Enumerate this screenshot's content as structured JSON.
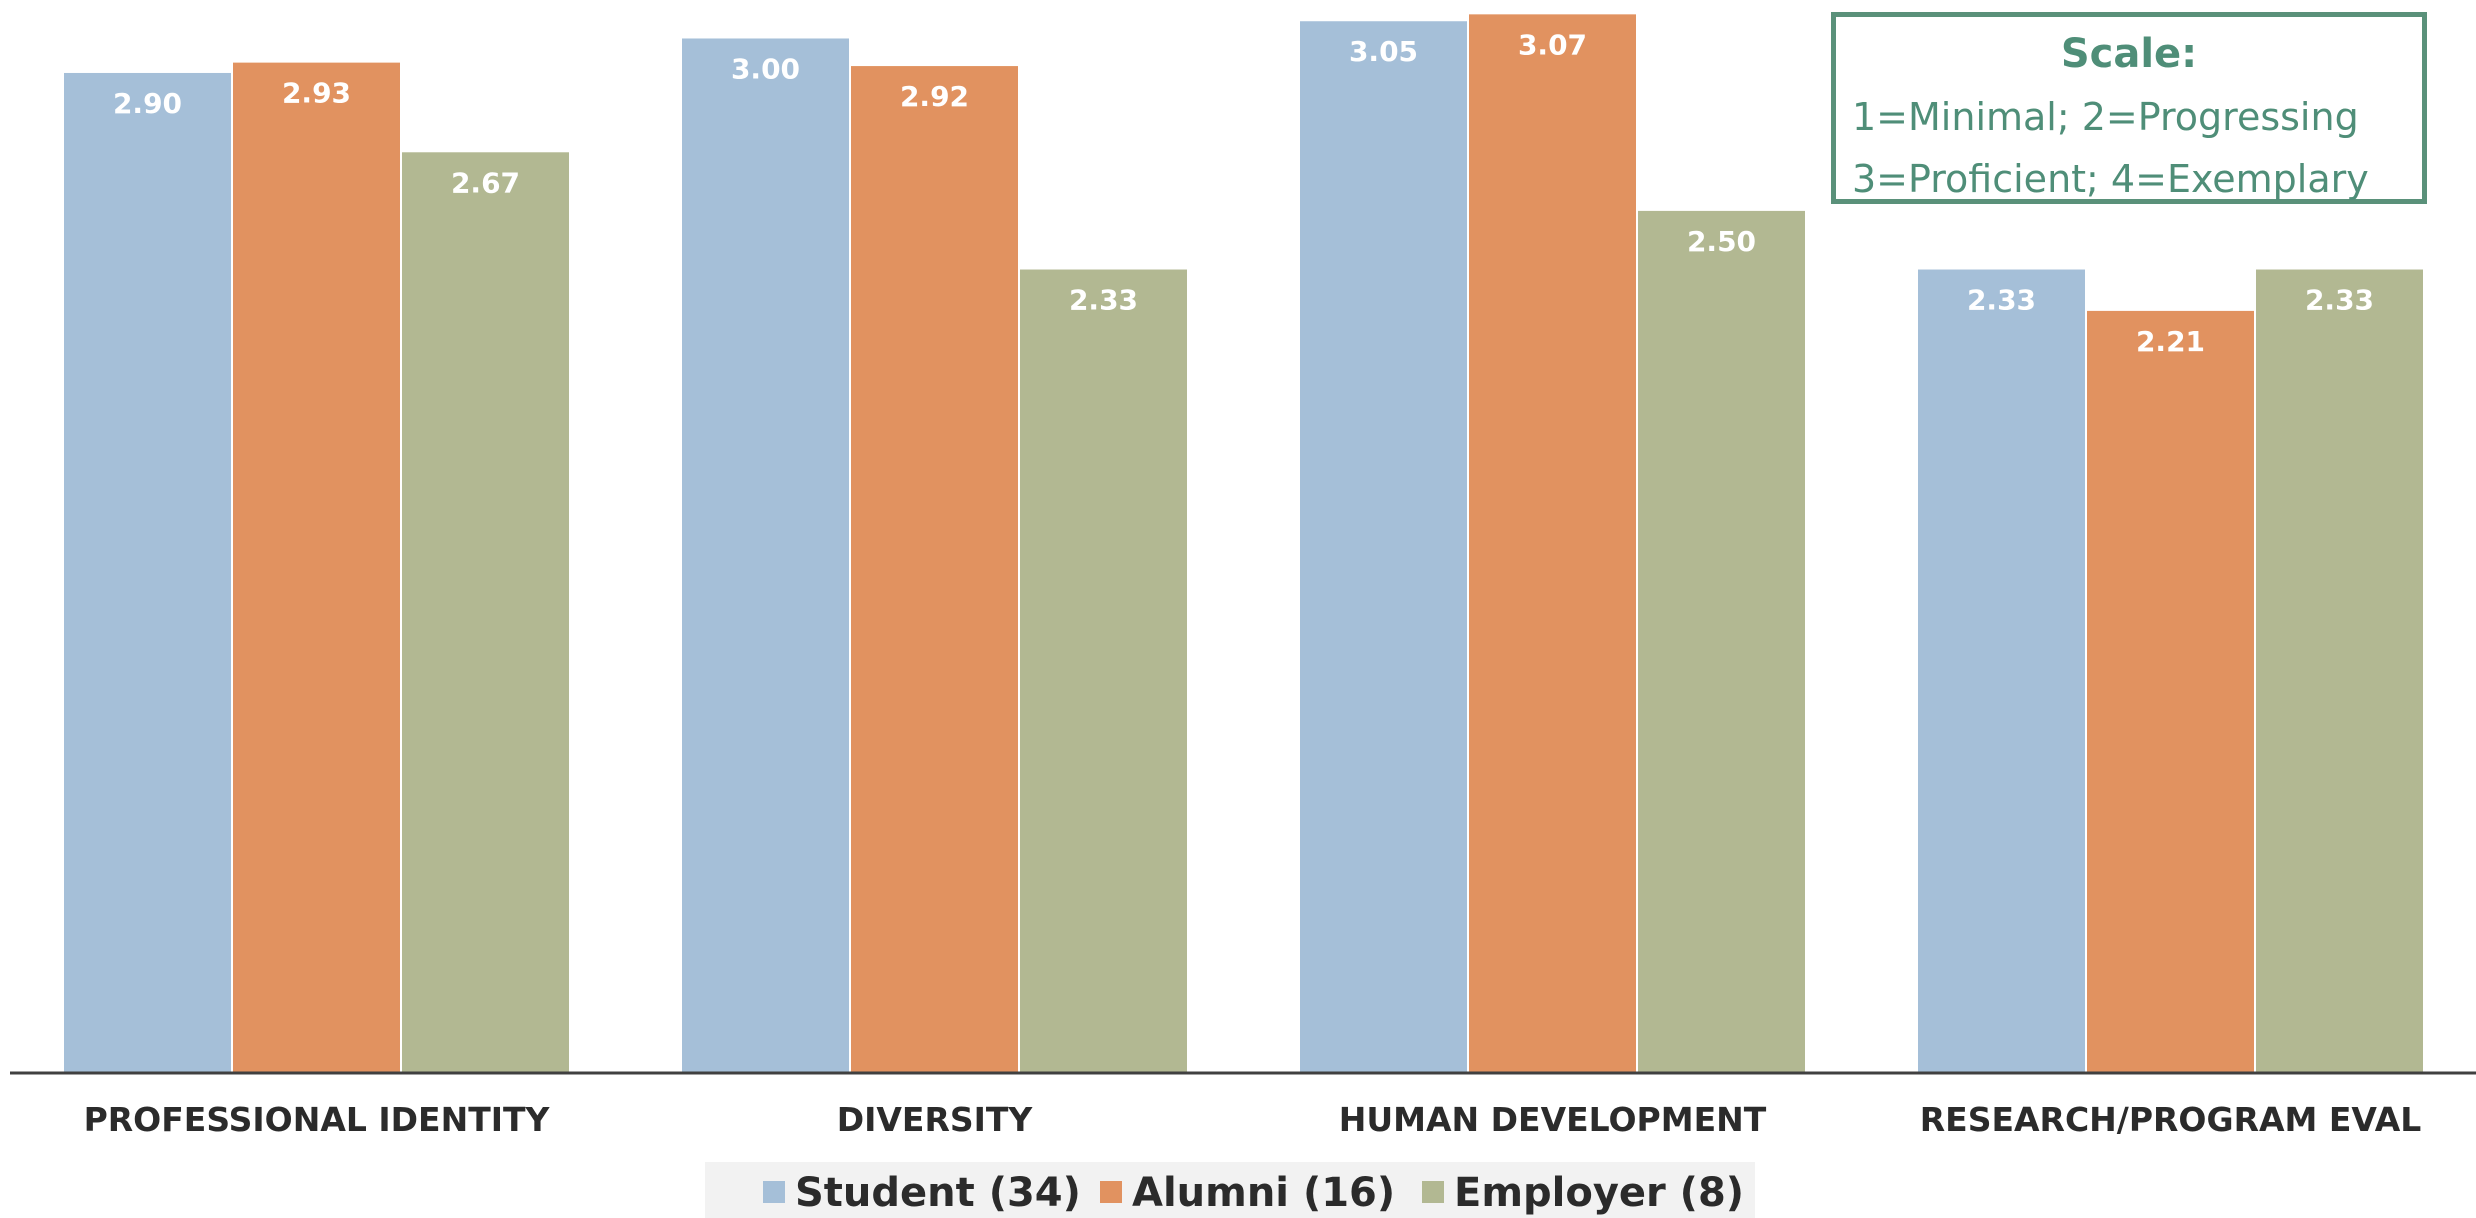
{
  "chart_data": {
    "type": "bar",
    "title": "",
    "xlabel": "",
    "ylabel": "",
    "ylim": [
      0,
      3.1
    ],
    "grid": false,
    "legend_position": "bottom",
    "categories": [
      "PROFESSIONAL IDENTITY",
      "DIVERSITY",
      "HUMAN DEVELOPMENT",
      "RESEARCH/PROGRAM EVAL"
    ],
    "series": [
      {
        "name": "Student (34)",
        "color": "#a5bfd8",
        "values": [
          2.9,
          3.0,
          3.05,
          2.33
        ],
        "labels": [
          "2.90",
          "3.00",
          "3.05",
          "2.33"
        ]
      },
      {
        "name": "Alumni (16)",
        "color": "#e19260",
        "values": [
          2.93,
          2.92,
          3.07,
          2.21
        ],
        "labels": [
          "2.93",
          "2.92",
          "3.07",
          "2.21"
        ]
      },
      {
        "name": "Employer (8)",
        "color": "#b2b892",
        "values": [
          2.67,
          2.33,
          2.5,
          2.33
        ],
        "labels": [
          "2.67",
          "2.33",
          "2.50",
          "2.33"
        ]
      }
    ],
    "annotation": {
      "title": "Scale:",
      "line1": "1=Minimal; 2=Progressing",
      "line2": "3=Proficient; 4=Exemplary",
      "color": "#5a917a"
    }
  }
}
